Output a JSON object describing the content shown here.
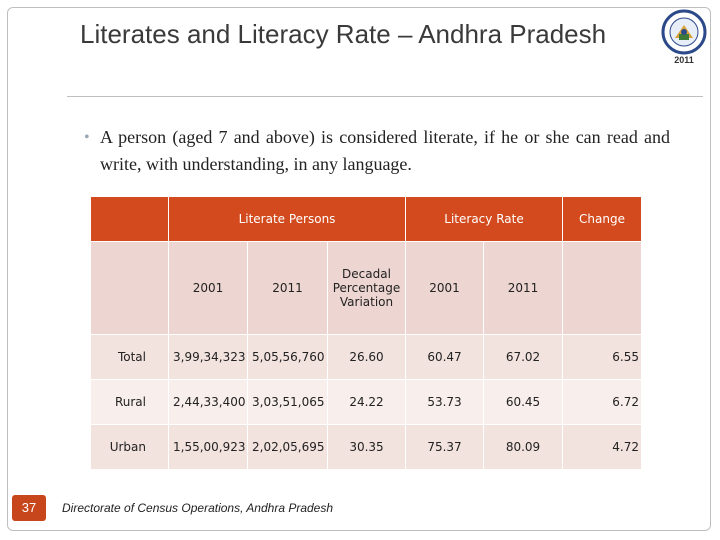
{
  "slide": {
    "title": "Literates and Literacy Rate – Andhra Pradesh",
    "bullet": "A person (aged 7 and above) is considered literate, if he or she can read and write, with  understanding, in any language.",
    "logo_year": "2011",
    "page_number": "37",
    "footer": "Directorate of Census Operations, Andhra Pradesh"
  },
  "table": {
    "group_headers": {
      "literate_persons": "Literate Persons",
      "literacy_rate": "Literacy Rate",
      "change": "Change"
    },
    "sub_headers": {
      "lp_2001": "2001",
      "lp_2011": "2011",
      "decadal": "Decadal Percentage Variation",
      "lr_2001": "2001",
      "lr_2011": "2011"
    },
    "rows": [
      {
        "label": "Total",
        "lp_2001": "3,99,34,323",
        "lp_2011": "5,05,56,760",
        "decadal": "26.60",
        "lr_2001": "60.47",
        "lr_2011": "67.02",
        "change": "6.55"
      },
      {
        "label": "Rural",
        "lp_2001": "2,44,33,400",
        "lp_2011": "3,03,51,065",
        "decadal": "24.22",
        "lr_2001": "53.73",
        "lr_2011": "60.45",
        "change": "6.72"
      },
      {
        "label": "Urban",
        "lp_2001": "1,55,00,923",
        "lp_2011": "2,02,05,695",
        "decadal": "30.35",
        "lr_2001": "75.37",
        "lr_2011": "80.09",
        "change": "4.72"
      }
    ]
  },
  "colors": {
    "header": "#d24a1d",
    "subheader": "#edd6d1",
    "row_a": "#f3e3df",
    "row_b": "#f8eeeb"
  }
}
